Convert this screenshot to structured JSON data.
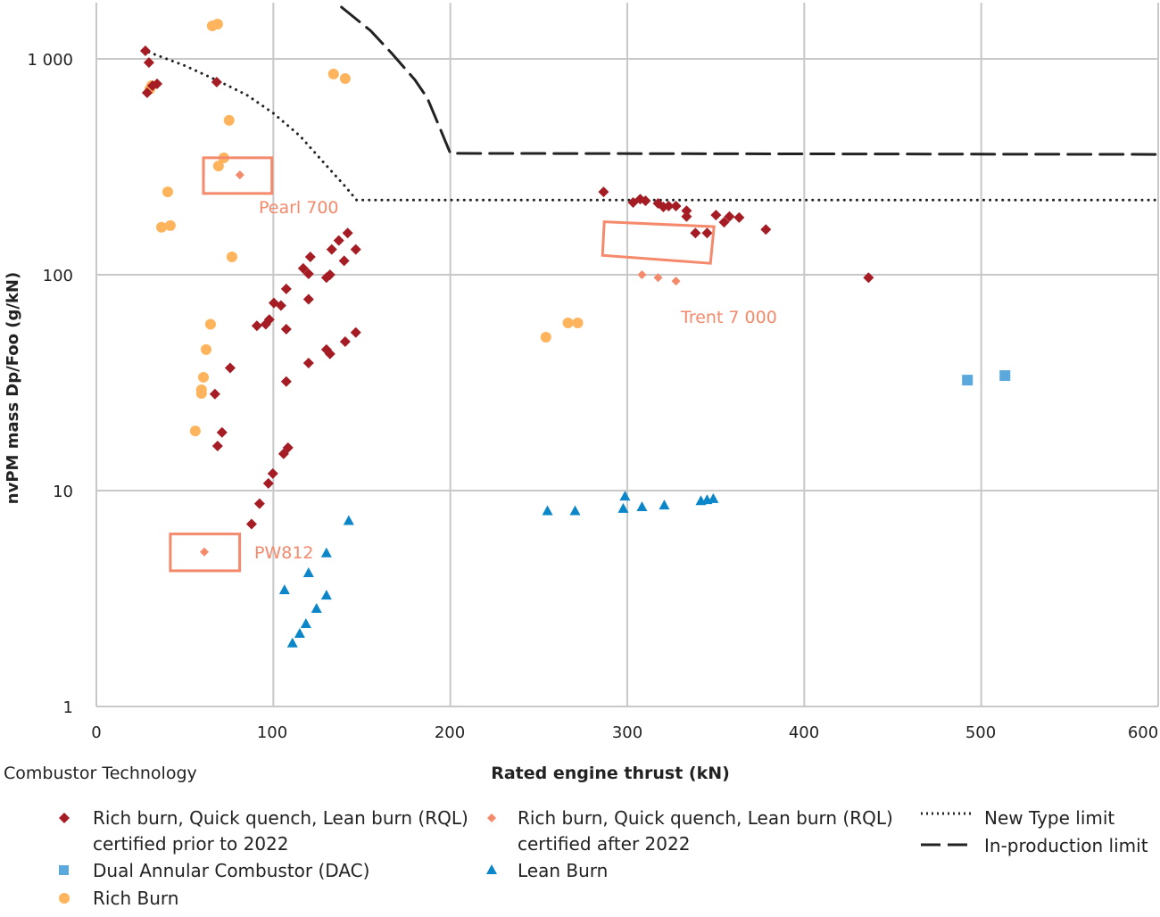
{
  "chart_data": {
    "type": "scatter",
    "xlabel": "Rated engine thrust (kN)",
    "ylabel": "nvPM mass Dp/Foo (g/kN)",
    "legend_title": "Combustor Technology",
    "legend_position": "bottom",
    "xlim": [
      0,
      600
    ],
    "ylim": [
      1,
      1870
    ],
    "y_scale": "log",
    "grid": true,
    "x_ticks": [
      0,
      100,
      200,
      300,
      400,
      500,
      600
    ],
    "x_tick_labels": [
      "0",
      "100",
      "200",
      "300",
      "400",
      "500",
      "600"
    ],
    "y_ticks": [
      1,
      10,
      100,
      1000
    ],
    "y_tick_labels": [
      "1",
      "10",
      "100",
      "1 000"
    ],
    "series": [
      {
        "name": "Rich burn, Quick quench, Lean burn (RQL) certified prior to 2022",
        "legend_lines": [
          "Rich burn, Quick quench, Lean burn (RQL)",
          "certified prior to 2022"
        ],
        "marker": "diamond",
        "color": "#a51c24",
        "points": [
          [
            27.7,
            1090
          ],
          [
            29.7,
            961
          ],
          [
            28.7,
            697
          ],
          [
            31.7,
            751
          ],
          [
            34.3,
            766
          ],
          [
            68,
            781
          ],
          [
            286.6,
            242
          ],
          [
            303.3,
            216
          ],
          [
            307.3,
            224
          ],
          [
            310.3,
            220
          ],
          [
            317.4,
            214
          ],
          [
            320.4,
            206
          ],
          [
            323.4,
            208
          ],
          [
            327.5,
            208
          ],
          [
            333.5,
            198
          ],
          [
            333.5,
            186
          ],
          [
            338.5,
            156
          ],
          [
            345.1,
            156
          ],
          [
            350.1,
            189
          ],
          [
            354.7,
            175
          ],
          [
            357.7,
            186
          ],
          [
            363.2,
            184
          ],
          [
            378.3,
            162
          ],
          [
            436.3,
            97
          ],
          [
            142,
            156
          ],
          [
            137,
            144
          ],
          [
            133,
            131
          ],
          [
            146.6,
            131
          ],
          [
            120.9,
            121
          ],
          [
            140,
            116
          ],
          [
            116.9,
            107
          ],
          [
            119.9,
            101
          ],
          [
            132,
            100
          ],
          [
            130,
            97
          ],
          [
            107.3,
            86
          ],
          [
            100.3,
            74
          ],
          [
            104.3,
            72
          ],
          [
            119.9,
            77
          ],
          [
            97.7,
            62
          ],
          [
            95.7,
            59
          ],
          [
            90.7,
            58
          ],
          [
            107.3,
            56
          ],
          [
            75.6,
            37
          ],
          [
            130,
            45
          ],
          [
            132,
            43
          ],
          [
            140.6,
            49
          ],
          [
            146.6,
            54
          ],
          [
            119.9,
            39
          ],
          [
            107.3,
            32
          ],
          [
            67,
            28
          ],
          [
            71,
            18.6
          ],
          [
            68.5,
            16.1
          ],
          [
            108.3,
            15.8
          ],
          [
            105.8,
            14.8
          ],
          [
            99.7,
            12
          ],
          [
            97.2,
            10.8
          ],
          [
            92.2,
            8.7
          ],
          [
            87.7,
            7.0
          ]
        ]
      },
      {
        "name": "Rich burn, Quick quench, Lean burn (RQL) certified after 2022",
        "legend_lines": [
          "Rich burn, Quick quench, Lean burn (RQL)",
          "certified after 2022"
        ],
        "marker": "diamond-small",
        "color": "#f4896b",
        "points": [
          [
            81.1,
            290
          ],
          [
            61,
            5.2
          ],
          [
            308.3,
            100
          ],
          [
            317.4,
            97
          ],
          [
            327.5,
            93.5
          ]
        ]
      },
      {
        "name": "Dual Annular Combustor (DAC)",
        "legend_lines": [
          "Dual Annular Combustor (DAC)"
        ],
        "marker": "square",
        "color": "#5ba8dc",
        "points": [
          [
            492.2,
            32.5
          ],
          [
            513.4,
            34.1
          ]
        ]
      },
      {
        "name": "Lean Burn",
        "legend_lines": [
          "Lean Burn"
        ],
        "marker": "triangle",
        "color": "#0a86c9",
        "points": [
          [
            142.6,
            7.2
          ],
          [
            130,
            5.1
          ],
          [
            119.9,
            4.13
          ],
          [
            106.3,
            3.44
          ],
          [
            130,
            3.25
          ],
          [
            124.4,
            2.82
          ],
          [
            118.4,
            2.4
          ],
          [
            114.9,
            2.16
          ],
          [
            110.8,
            1.95
          ],
          [
            254.9,
            8.0
          ],
          [
            270.5,
            8.0
          ],
          [
            298.7,
            9.35
          ],
          [
            297.7,
            8.2
          ],
          [
            308.3,
            8.35
          ],
          [
            320.9,
            8.5
          ],
          [
            341.6,
            8.9
          ],
          [
            345.1,
            9.0
          ],
          [
            348.6,
            9.1
          ]
        ]
      },
      {
        "name": "Rich Burn",
        "legend_lines": [
          "Rich Burn"
        ],
        "marker": "circle",
        "color": "#fdb45c",
        "points": [
          [
            65.5,
            1422
          ],
          [
            68.5,
            1450
          ],
          [
            31.2,
            751
          ],
          [
            30.2,
            724
          ],
          [
            134,
            851
          ],
          [
            140.6,
            811
          ],
          [
            75,
            519
          ],
          [
            72,
            348
          ],
          [
            69,
            319
          ],
          [
            40.3,
            242
          ],
          [
            36.8,
            166
          ],
          [
            41.8,
            169
          ],
          [
            76.6,
            121
          ],
          [
            64.5,
            59
          ],
          [
            62,
            45
          ],
          [
            60.5,
            33.5
          ],
          [
            59.4,
            29.3
          ],
          [
            59.4,
            28.2
          ],
          [
            55.9,
            18.9
          ],
          [
            254,
            51.4
          ],
          [
            266.5,
            59.8
          ],
          [
            272,
            59.8
          ]
        ]
      }
    ],
    "limit_lines": [
      {
        "name": "New Type limit",
        "style": "dotted",
        "color": "#222222",
        "points": [
          [
            26.2,
            1100
          ],
          [
            50,
            930
          ],
          [
            69,
            790
          ],
          [
            85,
            680
          ],
          [
            100,
            560
          ],
          [
            115,
            440
          ],
          [
            132,
            307
          ],
          [
            140,
            260
          ],
          [
            147,
            222
          ],
          [
            150,
            222
          ],
          [
            600,
            222
          ]
        ]
      },
      {
        "name": "In-production limit",
        "style": "dashed",
        "color": "#222222",
        "points": [
          [
            138.5,
            1736
          ],
          [
            155,
            1350
          ],
          [
            167,
            1059
          ],
          [
            180,
            800
          ],
          [
            187,
            658
          ],
          [
            194,
            480
          ],
          [
            200,
            365
          ],
          [
            600,
            361
          ]
        ]
      }
    ],
    "annotations": [
      {
        "label": "Pearl 700",
        "color": "#f4896b"
      },
      {
        "label": "Trent 7 000",
        "color": "#f4896b"
      },
      {
        "label": "PW812",
        "color": "#f4896b"
      }
    ]
  }
}
